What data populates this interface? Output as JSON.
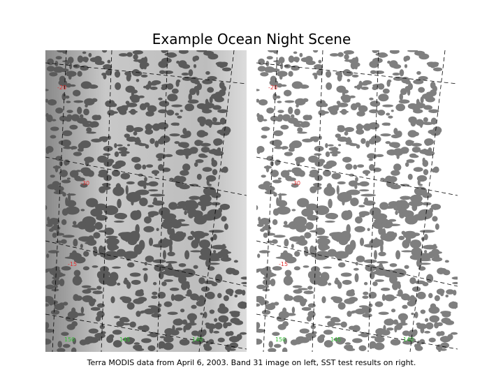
{
  "title": "Example Ocean Night Scene",
  "caption": "Terra MODIS data from April 6, 2003.  Band 31 image on left, SST test results on right.",
  "panels": [
    {
      "lat_labels": [
        "-20",
        "-30",
        "-15"
      ],
      "lon_labels": [
        "150",
        "145",
        "140"
      ]
    },
    {
      "lat_labels": [
        "-20",
        "-30",
        "-15"
      ],
      "lon_labels": [
        "150",
        "145",
        "140"
      ]
    }
  ]
}
